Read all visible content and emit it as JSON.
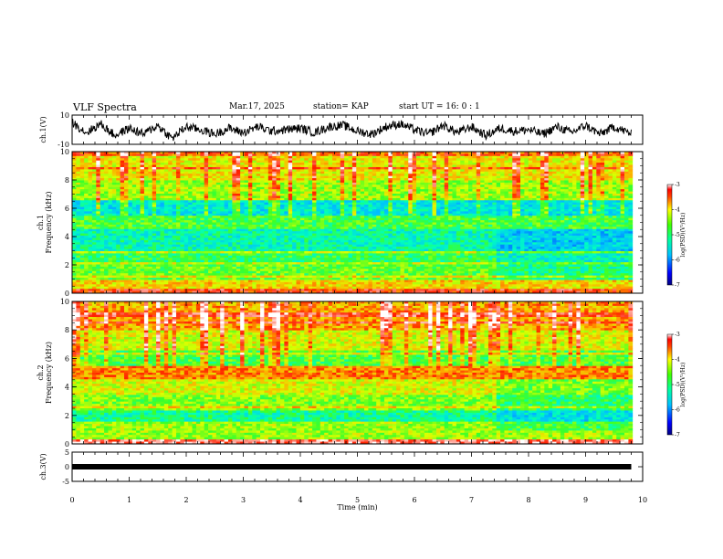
{
  "header": {
    "title": "VLF Spectra",
    "date": "Mar.17, 2025",
    "station": "station= KAP",
    "start": "start  UT  =   16: 0  : 1"
  },
  "colors": {
    "colormap": [
      "#000080",
      "#0000ff",
      "#00a0ff",
      "#00ffff",
      "#40ff80",
      "#80ff00",
      "#ffff00",
      "#ffa000",
      "#ff0000",
      "#ffffff"
    ],
    "waveform": "#000000"
  },
  "chart_data": [
    {
      "type": "line",
      "name": "waveform-ch1",
      "ylabel": "ch.1(V)",
      "ylim": [
        -10,
        10
      ],
      "yticks": [
        "10",
        "-10"
      ],
      "x": [
        0,
        0.25,
        0.5,
        0.75,
        1,
        1.25,
        1.5,
        1.75,
        2,
        2.25,
        2.5,
        2.75,
        3,
        3.25,
        3.5,
        3.75,
        4,
        4.25,
        4.5,
        4.75,
        5,
        5.25,
        5.5,
        5.75,
        6,
        6.25,
        6.5,
        6.75,
        7,
        7.25,
        7.5,
        7.75,
        8,
        8.25,
        8.5,
        8.75,
        9,
        9.25,
        9.5,
        9.75
      ],
      "y": [
        5,
        -2,
        4,
        -4,
        1,
        -3,
        3,
        -6,
        2,
        0,
        -3,
        1,
        -2,
        2,
        -1,
        0,
        1,
        -2,
        2,
        3,
        -1,
        -3,
        2,
        4,
        0,
        -3,
        3,
        -2,
        2,
        -4,
        1,
        -1,
        0,
        -3,
        2,
        -2,
        3,
        -3,
        2,
        -2
      ]
    },
    {
      "type": "heatmap",
      "name": "ch1-spectrogram",
      "ylabel": "ch.1\nFrequency (kHz)",
      "xlim": [
        0,
        10
      ],
      "ylim": [
        0,
        10
      ],
      "yticks": [
        "0",
        "2",
        "4",
        "6",
        "8",
        "10"
      ],
      "colorbar": {
        "label": "log(PSD)(V²/Hz)",
        "range": [
          -7,
          -3
        ],
        "ticks": [
          "-3",
          "-4",
          "-5",
          "-6",
          "-7"
        ]
      },
      "band_profile": [
        {
          "f_min": 0,
          "f_max": 0.3,
          "log_psd": -3.6
        },
        {
          "f_min": 0.3,
          "f_max": 1,
          "log_psd": -4.2
        },
        {
          "f_min": 1,
          "f_max": 2,
          "log_psd": -4.8
        },
        {
          "f_min": 2,
          "f_max": 3,
          "log_psd": -5.0
        },
        {
          "f_min": 3,
          "f_max": 4.5,
          "log_psd": -5.3
        },
        {
          "f_min": 4.5,
          "f_max": 5.5,
          "log_psd": -4.9
        },
        {
          "f_min": 5.5,
          "f_max": 6.5,
          "log_psd": -5.5
        },
        {
          "f_min": 6.5,
          "f_max": 8,
          "log_psd": -4.6
        },
        {
          "f_min": 8,
          "f_max": 10,
          "log_psd": -4.3
        }
      ]
    },
    {
      "type": "heatmap",
      "name": "ch2-spectrogram",
      "ylabel": "ch.2\nFrequency (kHz)",
      "xlim": [
        0,
        10
      ],
      "ylim": [
        0,
        10
      ],
      "yticks": [
        "0",
        "2",
        "4",
        "6",
        "8",
        "10"
      ],
      "colorbar": {
        "label": "log(PSD)(V²/Hz)",
        "range": [
          -7,
          -3
        ],
        "ticks": [
          "-3",
          "-4",
          "-5",
          "-6",
          "-7"
        ]
      },
      "band_profile": [
        {
          "f_min": 0,
          "f_max": 0.3,
          "log_psd": -3.8
        },
        {
          "f_min": 0.3,
          "f_max": 1.5,
          "log_psd": -4.6
        },
        {
          "f_min": 1.5,
          "f_max": 2.5,
          "log_psd": -5.2
        },
        {
          "f_min": 2.5,
          "f_max": 3.5,
          "log_psd": -4.7
        },
        {
          "f_min": 3.5,
          "f_max": 4.5,
          "log_psd": -4.4
        },
        {
          "f_min": 4.5,
          "f_max": 5.5,
          "log_psd": -3.9
        },
        {
          "f_min": 5.5,
          "f_max": 6.5,
          "log_psd": -4.9
        },
        {
          "f_min": 6.5,
          "f_max": 8,
          "log_psd": -4.4
        },
        {
          "f_min": 8,
          "f_max": 10,
          "log_psd": -4.0
        }
      ]
    },
    {
      "type": "line",
      "name": "waveform-ch3",
      "ylabel": "ch.3(V)",
      "ylim": [
        -5,
        5
      ],
      "yticks": [
        "5",
        "0",
        "-5"
      ],
      "x": [
        0,
        9.8
      ],
      "y": [
        0,
        0
      ]
    }
  ],
  "xaxis": {
    "label": "Time (min)",
    "ticks": [
      "0",
      "1",
      "2",
      "3",
      "4",
      "5",
      "6",
      "7",
      "8",
      "9",
      "10"
    ],
    "xlim": [
      0,
      10
    ]
  }
}
